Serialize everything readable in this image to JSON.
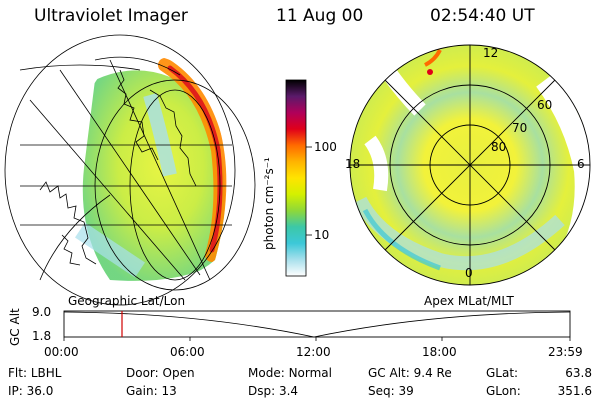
{
  "header": {
    "instrument": "Ultraviolet Imager",
    "date": "11 Aug 00",
    "time": "02:54:40 UT"
  },
  "colorbar": {
    "unit_label": "photon cm⁻²s⁻¹",
    "ticks": [
      "100",
      "10"
    ],
    "colors": [
      "#000000",
      "#5a1a6a",
      "#b0005a",
      "#e0001a",
      "#ff6a00",
      "#ffb400",
      "#ffe400",
      "#d4f000",
      "#8ed83a",
      "#3cc8a8",
      "#3cc8d8",
      "#a8e0ec",
      "#ffffff"
    ]
  },
  "left_panel": {
    "label": "Geographic Lat/Lon"
  },
  "right_panel": {
    "label": "Apex MLat/MLT",
    "mlt_labels": {
      "top": "12",
      "left": "18",
      "right": "6",
      "bottom": "0"
    },
    "lat_labels": [
      "60",
      "70",
      "80"
    ]
  },
  "altitude_plot": {
    "ylabel": "GC Alt",
    "y_ticks": [
      "9.0",
      "1.8"
    ],
    "x_ticks": [
      "00:00",
      "06:00",
      "12:00",
      "18:00",
      "23:59"
    ],
    "marker_color": "#d00000"
  },
  "status": {
    "row1": [
      {
        "label": "Flt:",
        "value": "LBHL"
      },
      {
        "label": "Door:",
        "value": "Open"
      },
      {
        "label": "Mode:",
        "value": "Normal"
      },
      {
        "label": "GC Alt:",
        "value": "9.4 Re"
      },
      {
        "label": "GLat:",
        "value": "63.8"
      }
    ],
    "row2": [
      {
        "label": "IP:",
        "value": "36.0"
      },
      {
        "label": "Gain:",
        "value": "13"
      },
      {
        "label": "Dsp:",
        "value": "3.4"
      },
      {
        "label": "Seq:",
        "value": "39"
      },
      {
        "label": "GLon:",
        "value": "351.6"
      }
    ]
  }
}
